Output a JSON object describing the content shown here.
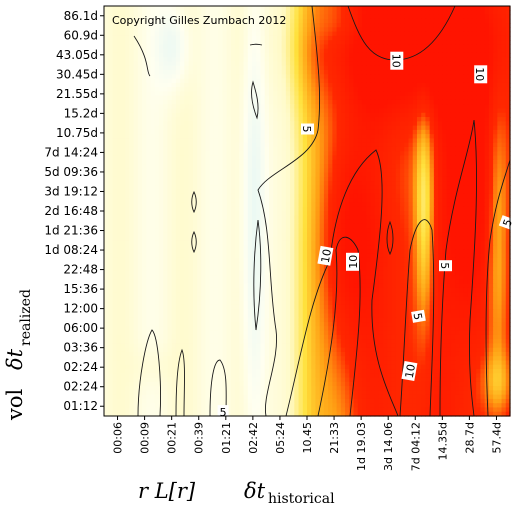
{
  "chart_data": {
    "type": "heatmap",
    "copyright": "Copyright Gilles Zumbach 2012",
    "x_tick_labels": [
      "00:06",
      "00:09",
      "00:21",
      "00:39",
      "01:21",
      "02:42",
      "05:24",
      "10.45",
      "21:33",
      "1d 19.03",
      "3d 14.06",
      "7d 04:12",
      "14.35d",
      "28.7d",
      "57.4d"
    ],
    "y_tick_labels": [
      "86.1d",
      "60.9d",
      "43.05d",
      "30.45d",
      "21.55d",
      "15.2d",
      "10.75d",
      "7d 14:24",
      "5d 09:36",
      "3d 19:12",
      "2d 16:48",
      "1d 21:36",
      "1d 08:24",
      "22:48",
      "15:36",
      "12:00",
      "06:00",
      "03:36",
      "02:24",
      "02:24",
      "01:12"
    ],
    "xlabel": {
      "prefix": "r L[r]",
      "symbol": "δt",
      "subscript": "historical"
    },
    "ylabel": {
      "prefix": "vol",
      "symbol": "δt",
      "subscript": "realized"
    },
    "contour_levels": [
      5,
      10
    ],
    "contour_labels": [
      {
        "text": "10",
        "col": 10.3,
        "row": 2.3,
        "rot": 90
      },
      {
        "text": "10",
        "col": 13.4,
        "row": 3.0,
        "rot": 90
      },
      {
        "text": "5",
        "col": 7.0,
        "row": 5.8,
        "rot": 90
      },
      {
        "text": "10",
        "col": 7.7,
        "row": 12.3,
        "rot": -80
      },
      {
        "text": "10",
        "col": 8.7,
        "row": 12.6,
        "rot": -90
      },
      {
        "text": "5",
        "col": 12.1,
        "row": 12.8,
        "rot": 90
      },
      {
        "text": "5",
        "col": 11.1,
        "row": 15.4,
        "rot": 80
      },
      {
        "text": "10",
        "col": 10.8,
        "row": 18.2,
        "rot": -80
      },
      {
        "text": "5",
        "col": 14.4,
        "row": 10.6,
        "rot": -70
      },
      {
        "text": "5",
        "col": 3.9,
        "row": 20.3,
        "rot": 0
      }
    ],
    "color_scale": {
      "low": "#eaf7f6",
      "mid": "#fffbcf",
      "high": "#ff1a00"
    },
    "grid": false
  }
}
